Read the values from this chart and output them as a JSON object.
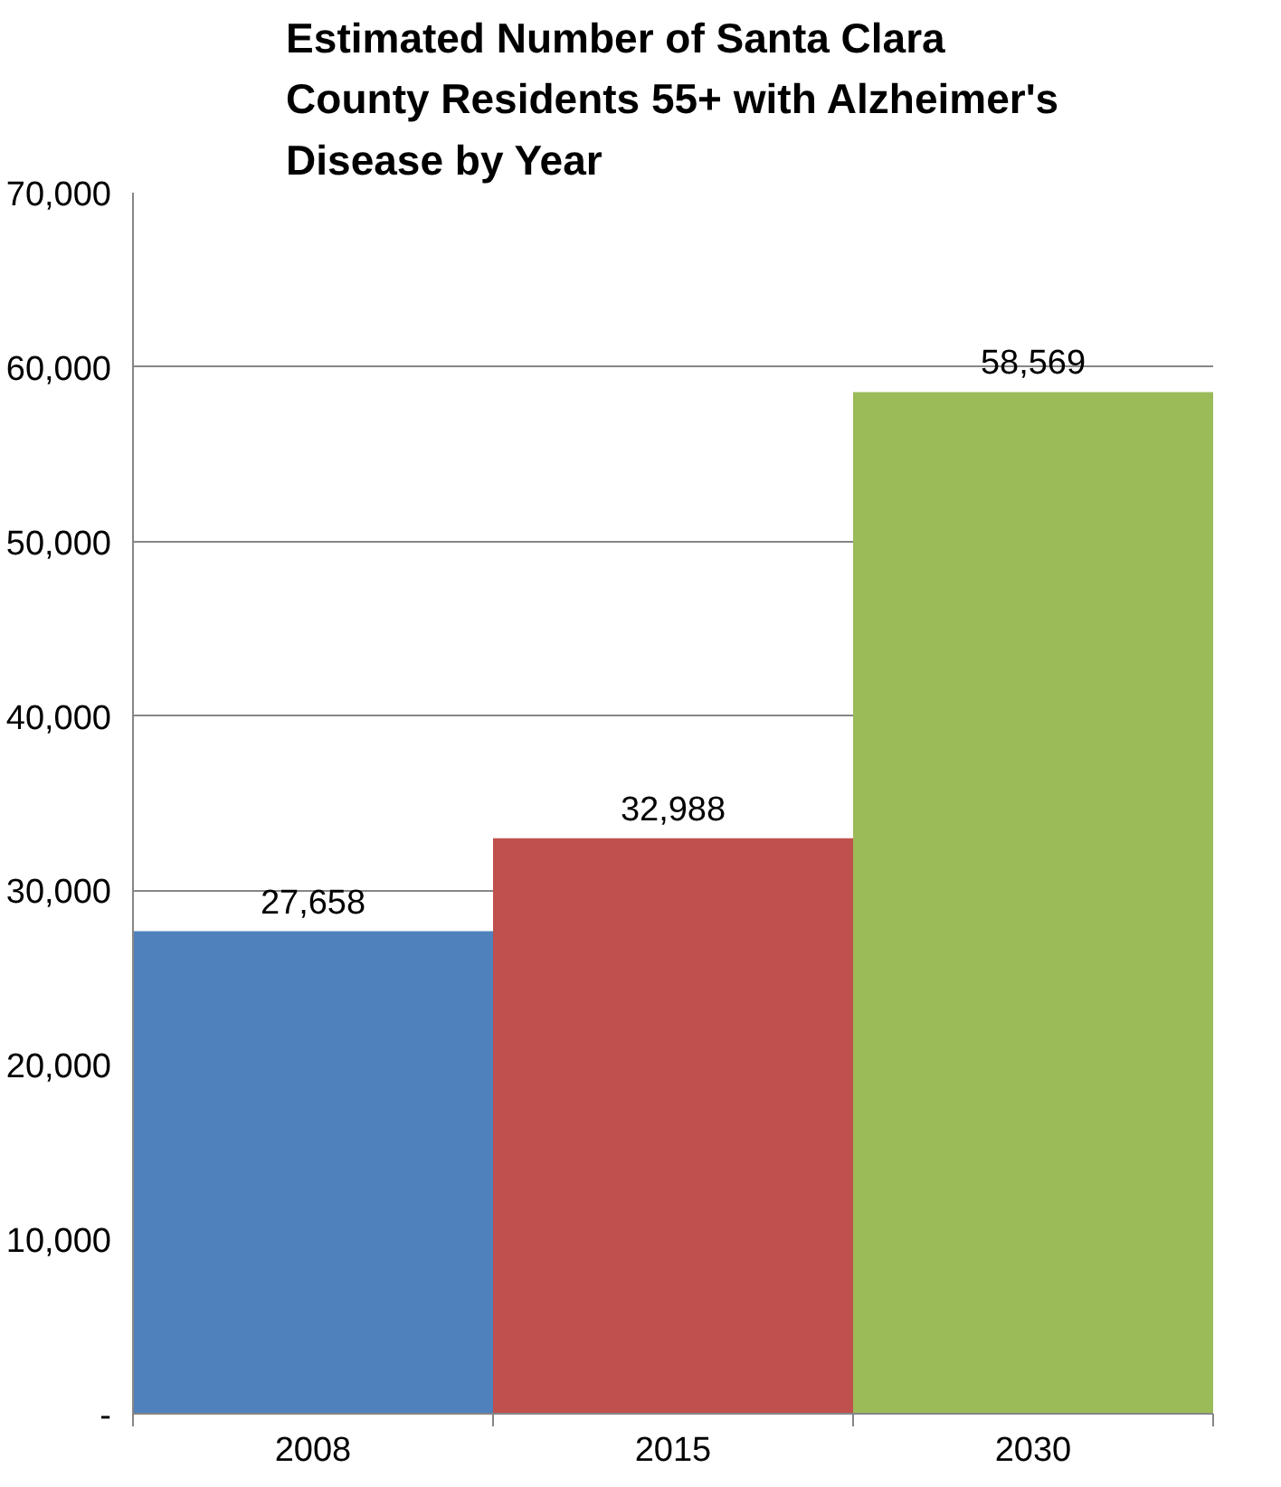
{
  "chart_data": {
    "type": "bar",
    "title": "Estimated Number of Santa Clara County Residents 55+ with Alzheimer's Disease by Year",
    "categories": [
      "2008",
      "2015",
      "2030"
    ],
    "values": [
      27658,
      32988,
      58569
    ],
    "colors": [
      "#4f81bd",
      "#c0504d",
      "#9bbb59"
    ],
    "value_labels": [
      "27,658",
      "32,988",
      "58,569"
    ],
    "ylim": [
      0,
      70000
    ],
    "yticks": [
      {
        "value": 0,
        "label": "-"
      },
      {
        "value": 10000,
        "label": "10,000"
      },
      {
        "value": 20000,
        "label": "20,000"
      },
      {
        "value": 30000,
        "label": "30,000"
      },
      {
        "value": 40000,
        "label": "40,000"
      },
      {
        "value": 50000,
        "label": "50,000"
      },
      {
        "value": 60000,
        "label": "60,000"
      },
      {
        "value": 70000,
        "label": "70,000"
      }
    ],
    "grid": "y"
  }
}
